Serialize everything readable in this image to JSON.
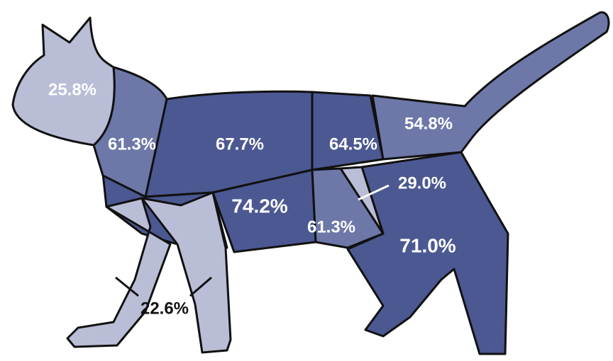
{
  "regions": [
    {
      "label": "25.8%"
    },
    {
      "label": "61.3%"
    },
    {
      "label": "67.7%"
    },
    {
      "label": "64.5%"
    },
    {
      "label": "54.8%"
    },
    {
      "label": "29.0%"
    },
    {
      "label": "74.2%"
    },
    {
      "label": "61.3%"
    },
    {
      "label": "71.0%"
    },
    {
      "label": "22.6%"
    }
  ]
}
